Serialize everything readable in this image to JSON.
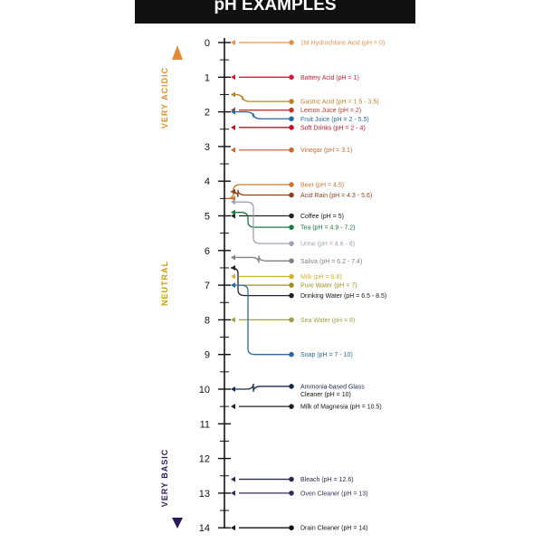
{
  "title": "pH EXAMPLES",
  "regions": {
    "acidic": "VERY ACIDIC",
    "neutral": "NEUTRAL",
    "basic": "VERY BASIC"
  },
  "scale": {
    "min": 0,
    "max": 14,
    "numbers": [
      "0",
      "1",
      "2",
      "3",
      "4",
      "5",
      "6",
      "7",
      "8",
      "9",
      "10",
      "11",
      "12",
      "13",
      "14"
    ]
  },
  "colors": {
    "acid_top": "#e08a3a",
    "mid": "#e8c000",
    "base_bottom": "#2a1a5a"
  },
  "examples": [
    {
      "label": "1M Hydrochloric Acid (pH = 0)",
      "ph": 0,
      "row": 0,
      "color": "#e09050"
    },
    {
      "label": "Battery Acid (pH = 1)",
      "ph": 1,
      "row": 1,
      "color": "#d0203a"
    },
    {
      "label": "Gastric Acid (pH = 1.5 - 3.5)",
      "ph": 1.5,
      "row": 1.7,
      "color": "#b8862a"
    },
    {
      "label": "Lemon Juice (pH = 2)",
      "ph": 2,
      "row": 1.95,
      "color": "#c0392b"
    },
    {
      "label": "Fruit Juice (pH = 2 - 5.5)",
      "ph": 2,
      "row": 2.2,
      "color": "#2a6aa0"
    },
    {
      "label": "Soft Drinks (pH = 2 - 4)",
      "ph": 2.5,
      "row": 2.45,
      "color": "#c0102a"
    },
    {
      "label": "Vinegar (pH = 3.1)",
      "ph": 3.1,
      "row": 3.1,
      "color": "#c86a30"
    },
    {
      "label": "Beer (pH = 4.5)",
      "ph": 4.5,
      "row": 4.1,
      "color": "#c87a30"
    },
    {
      "label": "Acid Rain (pH = 4.3 - 5.6)",
      "ph": 4.3,
      "row": 4.4,
      "color": "#8a4020"
    },
    {
      "label": "Coffee (pH = 5)",
      "ph": 5,
      "row": 5,
      "color": "#222222"
    },
    {
      "label": "Tea (pH = 4.9 - 7.2)",
      "ph": 4.9,
      "row": 5.33,
      "color": "#1a7a40"
    },
    {
      "label": "Urine (pH = 4.6 - 8)",
      "ph": 4.6,
      "row": 5.8,
      "color": "#a0a0b8"
    },
    {
      "label": "Saliva (pH = 6.2 - 7.4)",
      "ph": 6.2,
      "row": 6.3,
      "color": "#808080"
    },
    {
      "label": "Milk (pH = 6.8)",
      "ph": 6.8,
      "row": 6.75,
      "color": "#d8b030"
    },
    {
      "label": "Pure Water (pH = 7)",
      "ph": 7,
      "row": 7,
      "color": "#a09020"
    },
    {
      "label": "Drinking Water (pH = 6.5 - 8.5)",
      "ph": 6.5,
      "row": 7.3,
      "color": "#222222"
    },
    {
      "label": "Sea Water (pH = 8)",
      "ph": 8,
      "row": 8,
      "color": "#a0a040"
    },
    {
      "label": "Soap (pH = 7 - 10)",
      "ph": 7,
      "row": 9,
      "color": "#2a6aa0"
    },
    {
      "label": "Ammonia-based Glass",
      "ph": 10,
      "row": 9.92,
      "color": "#1a2a4a",
      "label2": "Cleaner (pH = 10)"
    },
    {
      "label": "Milk of Magnesia (pH = 10.5)",
      "ph": 10.5,
      "row": 10.5,
      "color": "#222222"
    },
    {
      "label": "Bleach (pH = 12.6)",
      "ph": 12.6,
      "row": 12.6,
      "color": "#2a2a4a"
    },
    {
      "label": "Oven Cleaner (pH = 13)",
      "ph": 13,
      "row": 13,
      "color": "#3a2a5a"
    },
    {
      "label": "Drain Cleaner (pH = 14)",
      "ph": 14,
      "row": 14,
      "color": "#111111"
    }
  ]
}
